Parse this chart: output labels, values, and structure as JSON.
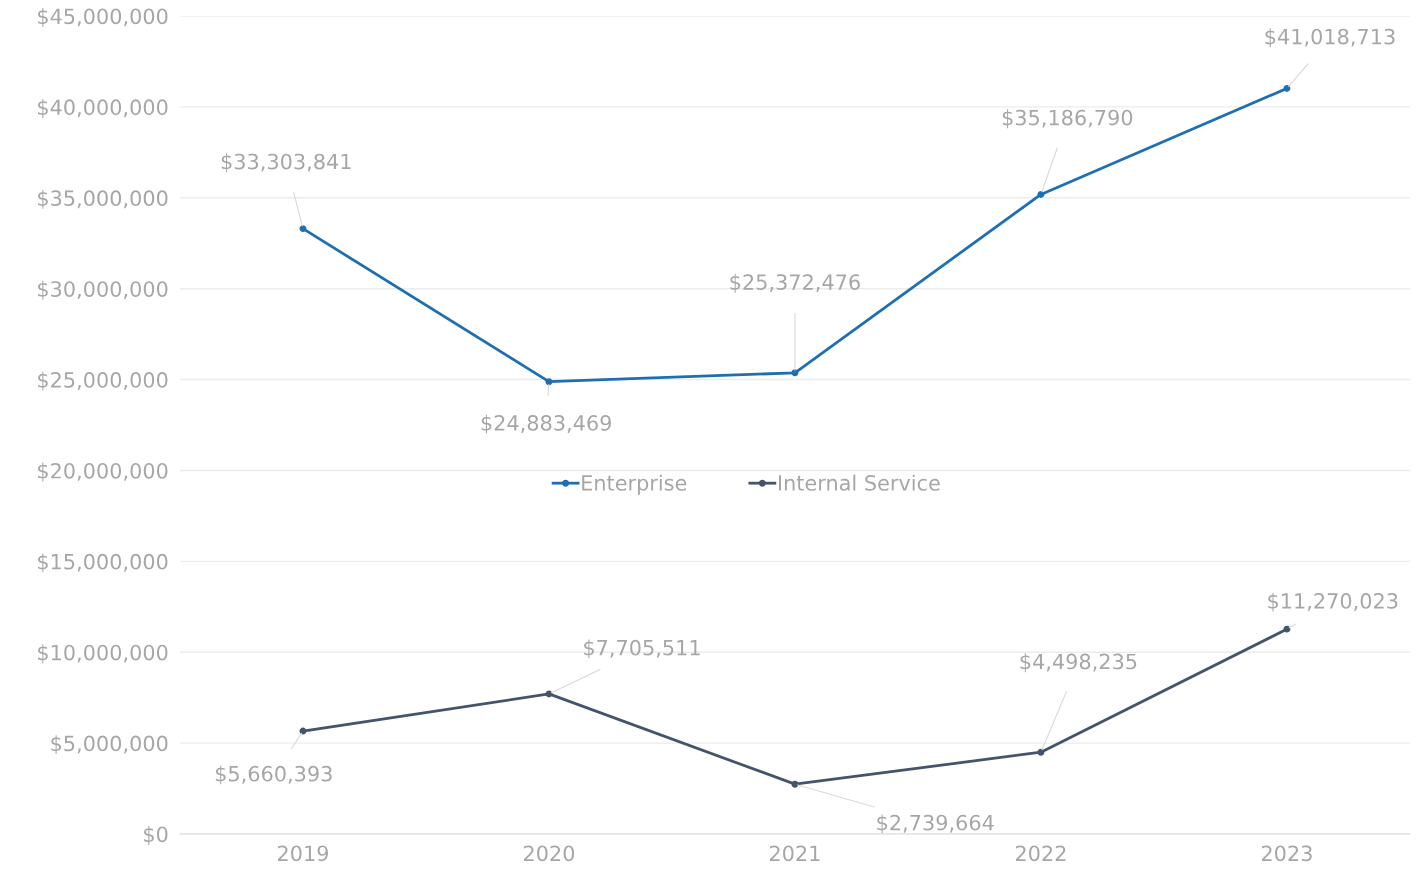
{
  "chart_data": {
    "type": "line",
    "categories": [
      "2019",
      "2020",
      "2021",
      "2022",
      "2023"
    ],
    "series": [
      {
        "name": "Enterprise",
        "color": "#1f6fb0",
        "values": [
          33303841,
          24883469,
          25372476,
          35186790,
          41018713
        ],
        "value_labels": [
          "$33,303,841",
          "$24,883,469",
          "$25,372,476",
          "$35,186,790",
          "$41,018,713"
        ]
      },
      {
        "name": "Internal Service",
        "color": "#44546a",
        "values": [
          5660393,
          7705511,
          2739664,
          4498235,
          11270023
        ],
        "value_labels": [
          "$5,660,393",
          "$7,705,511",
          "$2,739,664",
          "$4,498,235",
          "$11,270,023"
        ]
      }
    ],
    "ylim": [
      0,
      45000000
    ],
    "yticks": [
      {
        "value": 0,
        "label": "$0"
      },
      {
        "value": 5000000,
        "label": "$5,000,000"
      },
      {
        "value": 10000000,
        "label": "$10,000,000"
      },
      {
        "value": 15000000,
        "label": "$15,000,000"
      },
      {
        "value": 20000000,
        "label": "$20,000,000"
      },
      {
        "value": 25000000,
        "label": "$25,000,000"
      },
      {
        "value": 30000000,
        "label": "$30,000,000"
      },
      {
        "value": 35000000,
        "label": "$35,000,000"
      },
      {
        "value": 40000000,
        "label": "$40,000,000"
      },
      {
        "value": 45000000,
        "label": "$45,000,000"
      }
    ],
    "grid": "y",
    "legend": "center",
    "marker": "circle",
    "line_style": "solid"
  }
}
